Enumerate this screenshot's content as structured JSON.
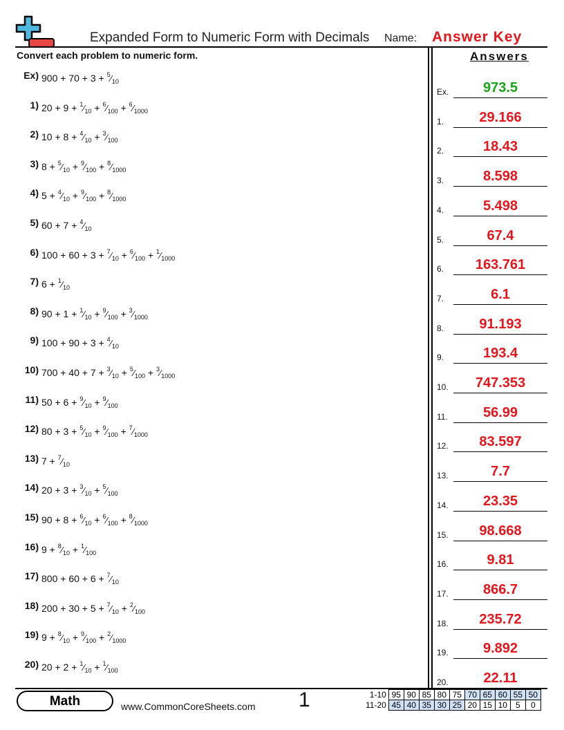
{
  "header": {
    "title": "Expanded Form to Numeric Form with Decimals",
    "name_label": "Name:",
    "name_value": "Answer Key"
  },
  "instructions": "Convert each problem to numeric form.",
  "answers_heading": "Answers",
  "colors": {
    "example_answer": "#1aa51a",
    "answer": "#e8141b",
    "score_shade": "#cfe1f5",
    "logo_blue": "#4fb8de",
    "logo_red": "#e84545"
  },
  "problems": [
    {
      "label": "Ex)",
      "terms": [
        "900",
        "70",
        "3",
        {
          "num": "5",
          "den": "10"
        }
      ]
    },
    {
      "label": "1)",
      "terms": [
        "20",
        "9",
        {
          "num": "1",
          "den": "10"
        },
        {
          "num": "6",
          "den": "100"
        },
        {
          "num": "6",
          "den": "1000"
        }
      ]
    },
    {
      "label": "2)",
      "terms": [
        "10",
        "8",
        {
          "num": "4",
          "den": "10"
        },
        {
          "num": "3",
          "den": "100"
        }
      ]
    },
    {
      "label": "3)",
      "terms": [
        "8",
        {
          "num": "5",
          "den": "10"
        },
        {
          "num": "9",
          "den": "100"
        },
        {
          "num": "8",
          "den": "1000"
        }
      ]
    },
    {
      "label": "4)",
      "terms": [
        "5",
        {
          "num": "4",
          "den": "10"
        },
        {
          "num": "9",
          "den": "100"
        },
        {
          "num": "8",
          "den": "1000"
        }
      ]
    },
    {
      "label": "5)",
      "terms": [
        "60",
        "7",
        {
          "num": "4",
          "den": "10"
        }
      ]
    },
    {
      "label": "6)",
      "terms": [
        "100",
        "60",
        "3",
        {
          "num": "7",
          "den": "10"
        },
        {
          "num": "6",
          "den": "100"
        },
        {
          "num": "1",
          "den": "1000"
        }
      ]
    },
    {
      "label": "7)",
      "terms": [
        "6",
        {
          "num": "1",
          "den": "10"
        }
      ]
    },
    {
      "label": "8)",
      "terms": [
        "90",
        "1",
        {
          "num": "1",
          "den": "10"
        },
        {
          "num": "9",
          "den": "100"
        },
        {
          "num": "3",
          "den": "1000"
        }
      ]
    },
    {
      "label": "9)",
      "terms": [
        "100",
        "90",
        "3",
        {
          "num": "4",
          "den": "10"
        }
      ]
    },
    {
      "label": "10)",
      "terms": [
        "700",
        "40",
        "7",
        {
          "num": "3",
          "den": "10"
        },
        {
          "num": "5",
          "den": "100"
        },
        {
          "num": "3",
          "den": "1000"
        }
      ]
    },
    {
      "label": "11)",
      "terms": [
        "50",
        "6",
        {
          "num": "9",
          "den": "10"
        },
        {
          "num": "9",
          "den": "100"
        }
      ]
    },
    {
      "label": "12)",
      "terms": [
        "80",
        "3",
        {
          "num": "5",
          "den": "10"
        },
        {
          "num": "9",
          "den": "100"
        },
        {
          "num": "7",
          "den": "1000"
        }
      ]
    },
    {
      "label": "13)",
      "terms": [
        "7",
        {
          "num": "7",
          "den": "10"
        }
      ]
    },
    {
      "label": "14)",
      "terms": [
        "20",
        "3",
        {
          "num": "3",
          "den": "10"
        },
        {
          "num": "5",
          "den": "100"
        }
      ]
    },
    {
      "label": "15)",
      "terms": [
        "90",
        "8",
        {
          "num": "6",
          "den": "10"
        },
        {
          "num": "6",
          "den": "100"
        },
        {
          "num": "8",
          "den": "1000"
        }
      ]
    },
    {
      "label": "16)",
      "terms": [
        "9",
        {
          "num": "8",
          "den": "10"
        },
        {
          "num": "1",
          "den": "100"
        }
      ]
    },
    {
      "label": "17)",
      "terms": [
        "800",
        "60",
        "6",
        {
          "num": "7",
          "den": "10"
        }
      ]
    },
    {
      "label": "18)",
      "terms": [
        "200",
        "30",
        "5",
        {
          "num": "7",
          "den": "10"
        },
        {
          "num": "2",
          "den": "100"
        }
      ]
    },
    {
      "label": "19)",
      "terms": [
        "9",
        {
          "num": "8",
          "den": "10"
        },
        {
          "num": "9",
          "den": "100"
        },
        {
          "num": "2",
          "den": "1000"
        }
      ]
    },
    {
      "label": "20)",
      "terms": [
        "20",
        "2",
        {
          "num": "1",
          "den": "10"
        },
        {
          "num": "1",
          "den": "100"
        }
      ]
    }
  ],
  "answers": [
    {
      "label": "Ex.",
      "value": "973.5"
    },
    {
      "label": "1.",
      "value": "29.166"
    },
    {
      "label": "2.",
      "value": "18.43"
    },
    {
      "label": "3.",
      "value": "8.598"
    },
    {
      "label": "4.",
      "value": "5.498"
    },
    {
      "label": "5.",
      "value": "67.4"
    },
    {
      "label": "6.",
      "value": "163.761"
    },
    {
      "label": "7.",
      "value": "6.1"
    },
    {
      "label": "8.",
      "value": "91.193"
    },
    {
      "label": "9.",
      "value": "193.4"
    },
    {
      "label": "10.",
      "value": "747.353"
    },
    {
      "label": "11.",
      "value": "56.99"
    },
    {
      "label": "12.",
      "value": "83.597"
    },
    {
      "label": "13.",
      "value": "7.7"
    },
    {
      "label": "14.",
      "value": "23.35"
    },
    {
      "label": "15.",
      "value": "98.668"
    },
    {
      "label": "16.",
      "value": "9.81"
    },
    {
      "label": "17.",
      "value": "866.7"
    },
    {
      "label": "18.",
      "value": "235.72"
    },
    {
      "label": "19.",
      "value": "9.892"
    },
    {
      "label": "20.",
      "value": "22.11"
    }
  ],
  "footer": {
    "subject": "Math",
    "website": "www.CommonCoreSheets.com",
    "page_number": "1",
    "score_rows": [
      {
        "label": "1-10",
        "scores": [
          "95",
          "90",
          "85",
          "80",
          "75",
          "70",
          "65",
          "60",
          "55",
          "50"
        ],
        "shaded": [
          false,
          false,
          false,
          false,
          false,
          true,
          true,
          true,
          true,
          true
        ]
      },
      {
        "label": "11-20",
        "scores": [
          "45",
          "40",
          "35",
          "30",
          "25",
          "20",
          "15",
          "10",
          "5",
          "0"
        ],
        "shaded": [
          true,
          true,
          true,
          true,
          true,
          false,
          false,
          false,
          false,
          false
        ]
      }
    ]
  }
}
